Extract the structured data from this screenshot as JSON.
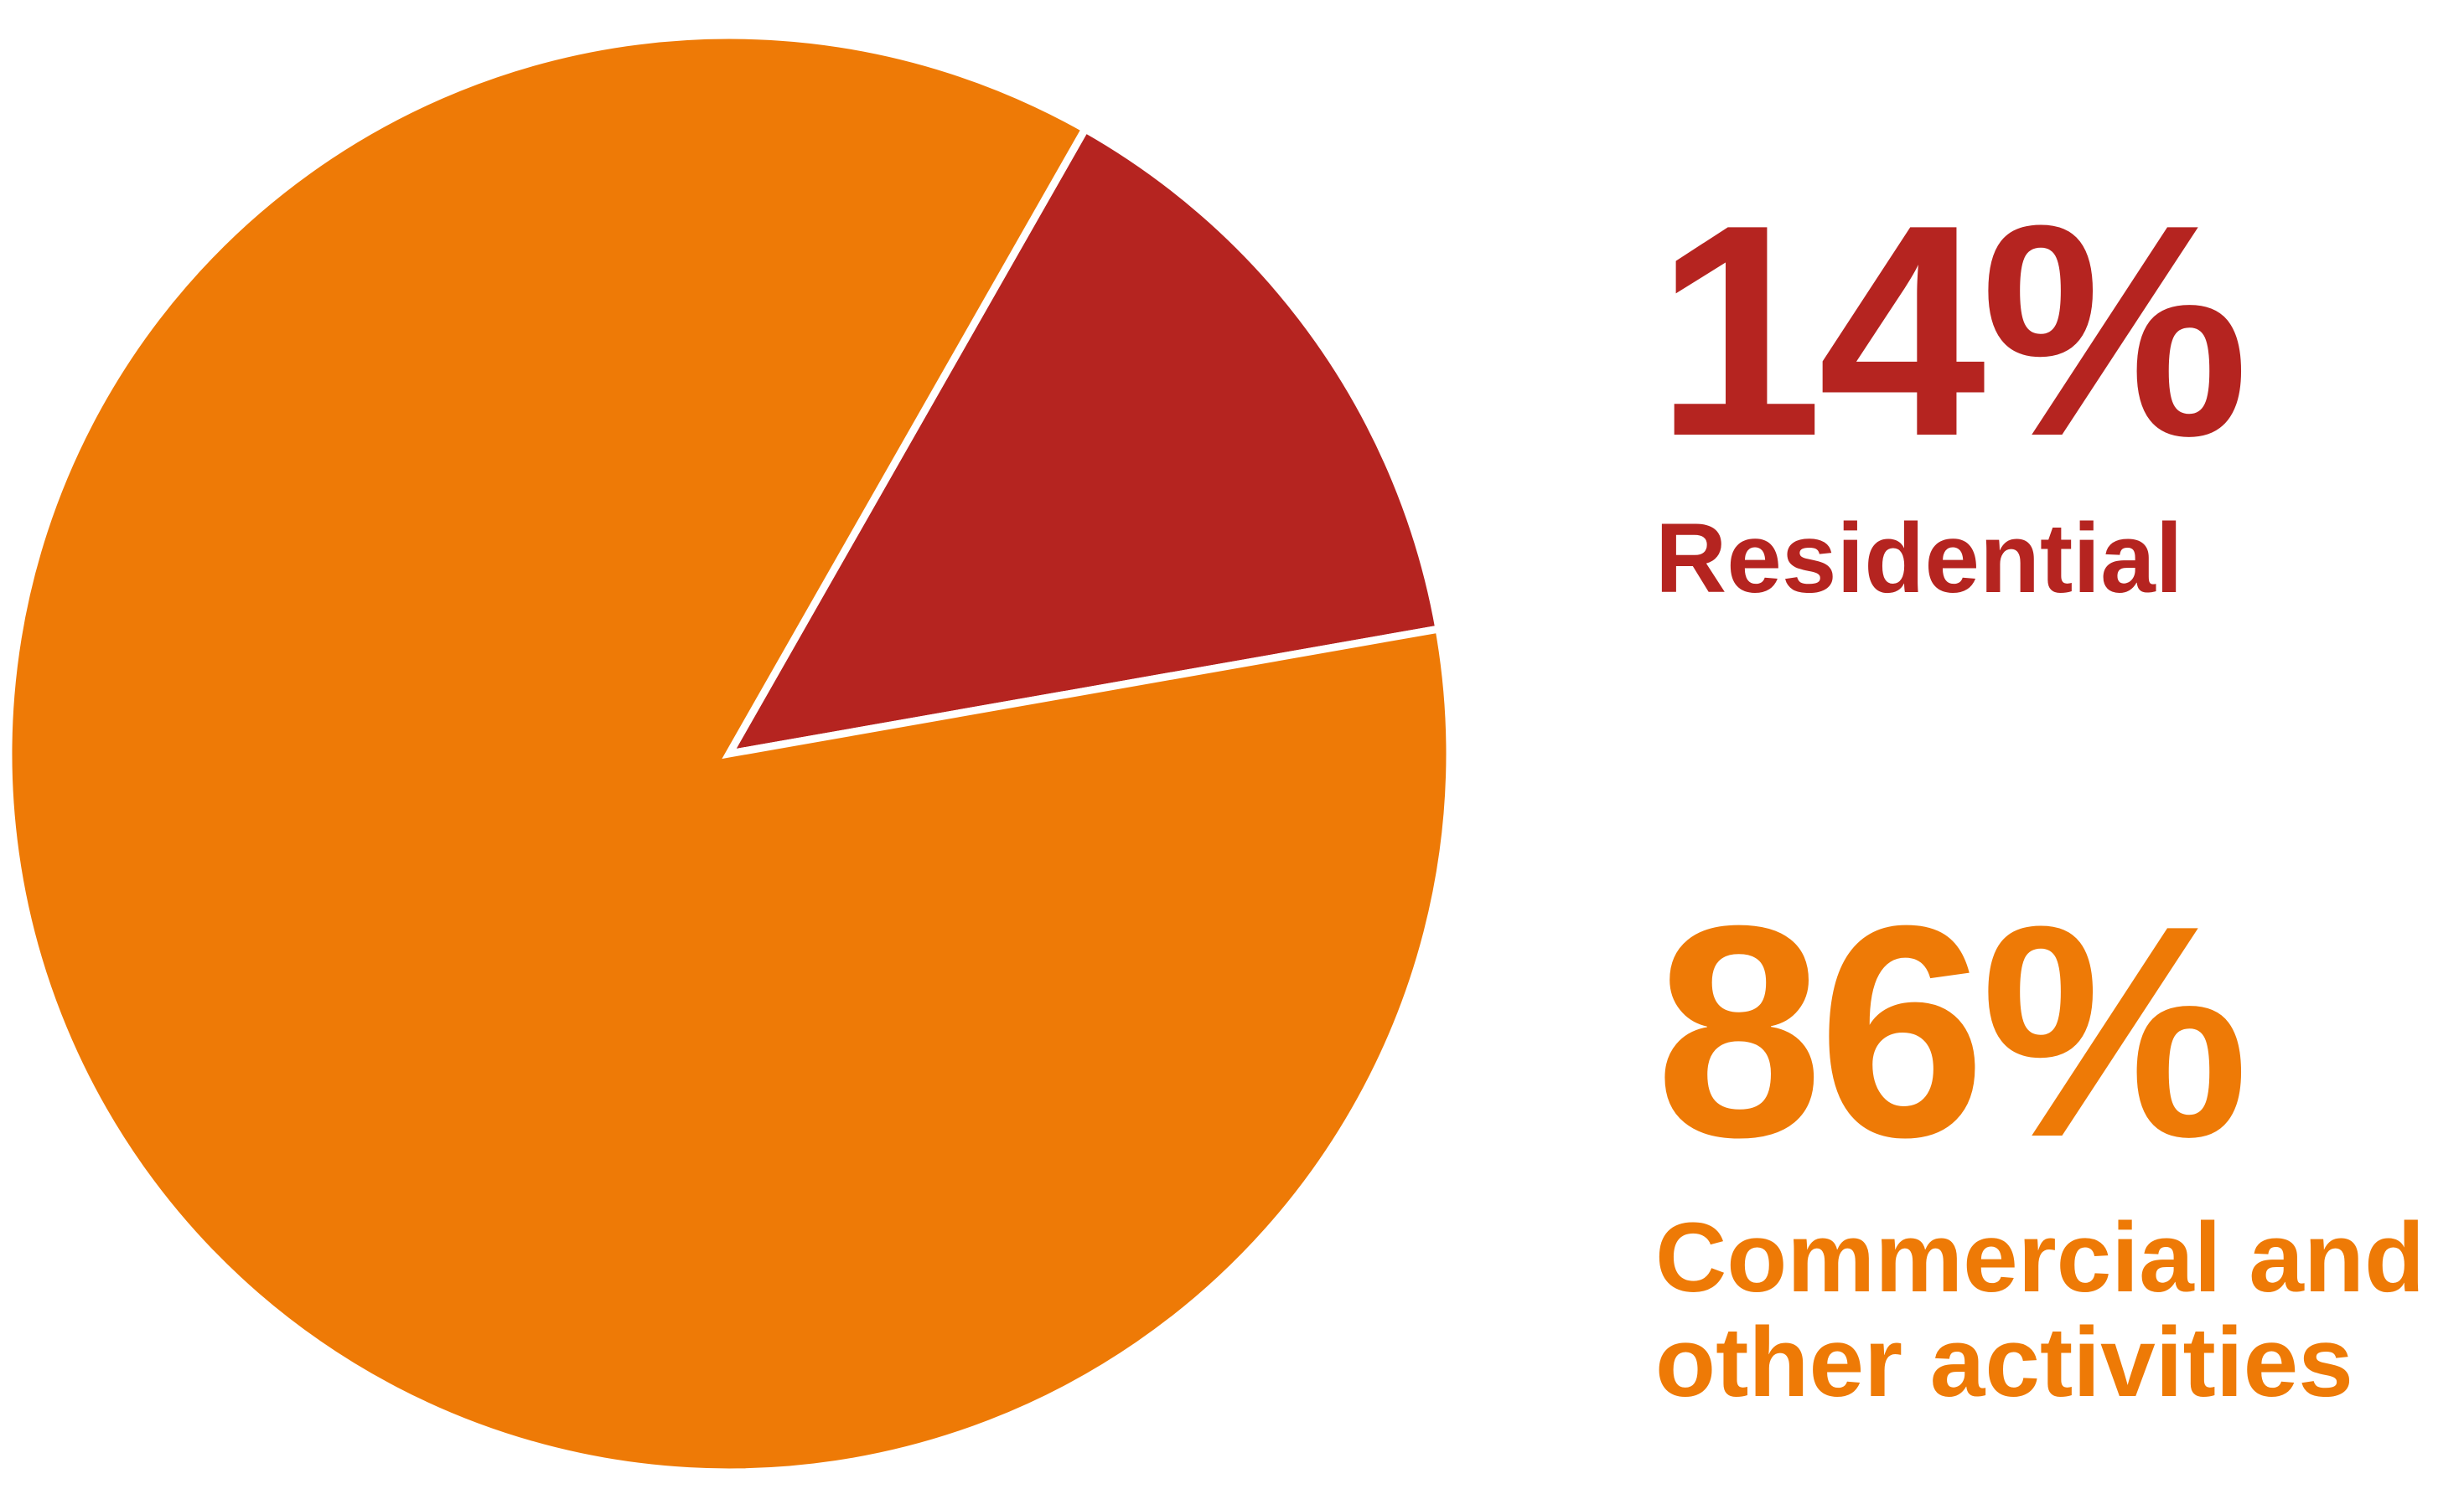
{
  "chart_data": {
    "type": "pie",
    "slices": [
      {
        "label": "Residential",
        "value": 14,
        "display": "14%",
        "color": "#b52420"
      },
      {
        "label": "Commercial and\nother activities",
        "value": 86,
        "display": "86%",
        "color": "#ee7a06"
      }
    ],
    "separator_color": "#ffffff"
  }
}
